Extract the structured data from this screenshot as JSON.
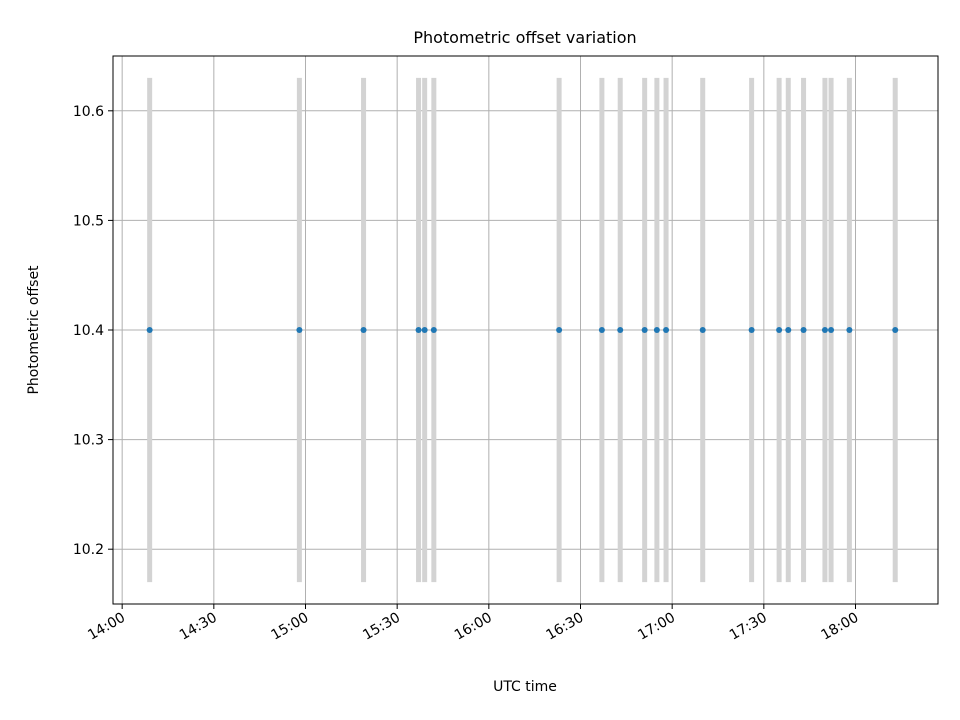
{
  "chart_data": {
    "type": "scatter",
    "title": "Photometric offset variation",
    "xlabel": "UTC time",
    "ylabel": "Photometric offset",
    "x_axis_type": "time",
    "xlim": [
      "13:57",
      "18:27"
    ],
    "ylim": [
      10.15,
      10.65
    ],
    "x_ticks": [
      "14:00",
      "14:30",
      "15:00",
      "15:30",
      "16:00",
      "16:30",
      "17:00",
      "17:30",
      "18:00"
    ],
    "y_ticks": [
      "10.2",
      "10.3",
      "10.4",
      "10.5",
      "10.6"
    ],
    "y_tick_values": [
      10.2,
      10.3,
      10.4,
      10.5,
      10.6
    ],
    "grid": true,
    "error_bar_color": "#d3d3d3",
    "point_color": "#1f77b4",
    "points": [
      {
        "x": "14:09",
        "y": 10.4,
        "err_low": 10.17,
        "err_high": 10.63
      },
      {
        "x": "14:58",
        "y": 10.4,
        "err_low": 10.17,
        "err_high": 10.63
      },
      {
        "x": "15:19",
        "y": 10.4,
        "err_low": 10.17,
        "err_high": 10.63
      },
      {
        "x": "15:37",
        "y": 10.4,
        "err_low": 10.17,
        "err_high": 10.63
      },
      {
        "x": "15:39",
        "y": 10.4,
        "err_low": 10.17,
        "err_high": 10.63
      },
      {
        "x": "15:42",
        "y": 10.4,
        "err_low": 10.17,
        "err_high": 10.63
      },
      {
        "x": "16:23",
        "y": 10.4,
        "err_low": 10.17,
        "err_high": 10.63
      },
      {
        "x": "16:37",
        "y": 10.4,
        "err_low": 10.17,
        "err_high": 10.63
      },
      {
        "x": "16:43",
        "y": 10.4,
        "err_low": 10.17,
        "err_high": 10.63
      },
      {
        "x": "16:51",
        "y": 10.4,
        "err_low": 10.17,
        "err_high": 10.63
      },
      {
        "x": "16:55",
        "y": 10.4,
        "err_low": 10.17,
        "err_high": 10.63
      },
      {
        "x": "16:58",
        "y": 10.4,
        "err_low": 10.17,
        "err_high": 10.63
      },
      {
        "x": "17:10",
        "y": 10.4,
        "err_low": 10.17,
        "err_high": 10.63
      },
      {
        "x": "17:26",
        "y": 10.4,
        "err_low": 10.17,
        "err_high": 10.63
      },
      {
        "x": "17:35",
        "y": 10.4,
        "err_low": 10.17,
        "err_high": 10.63
      },
      {
        "x": "17:38",
        "y": 10.4,
        "err_low": 10.17,
        "err_high": 10.63
      },
      {
        "x": "17:43",
        "y": 10.4,
        "err_low": 10.17,
        "err_high": 10.63
      },
      {
        "x": "17:50",
        "y": 10.4,
        "err_low": 10.17,
        "err_high": 10.63
      },
      {
        "x": "17:52",
        "y": 10.4,
        "err_low": 10.17,
        "err_high": 10.63
      },
      {
        "x": "17:58",
        "y": 10.4,
        "err_low": 10.17,
        "err_high": 10.63
      },
      {
        "x": "18:13",
        "y": 10.4,
        "err_low": 10.17,
        "err_high": 10.63
      }
    ]
  }
}
